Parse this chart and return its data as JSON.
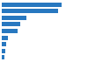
{
  "values": [
    27000,
    25500,
    11000,
    8500,
    7000,
    2800,
    1800,
    1400,
    1000
  ],
  "bar_color": "#2878c0",
  "background_color": "#ffffff",
  "panel_color": "#f0f0f0",
  "xlim": [
    0,
    31000
  ]
}
